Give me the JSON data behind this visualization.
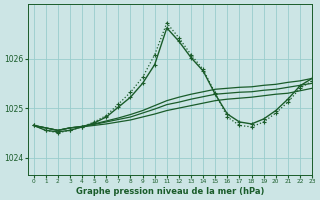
{
  "background_color": "#cce5e5",
  "grid_color": "#99cccc",
  "line_color": "#1a5c2a",
  "title": "Graphe pression niveau de la mer (hPa)",
  "xlim": [
    -0.5,
    23
  ],
  "ylim": [
    1023.65,
    1027.1
  ],
  "yticks": [
    1024,
    1025,
    1026
  ],
  "xticks": [
    0,
    1,
    2,
    3,
    4,
    5,
    6,
    7,
    8,
    9,
    10,
    11,
    12,
    13,
    14,
    15,
    16,
    17,
    18,
    19,
    20,
    21,
    22,
    23
  ],
  "series": [
    {
      "x": [
        0,
        1,
        2,
        3,
        4,
        5,
        6,
        7,
        8,
        9,
        10,
        11,
        12,
        13,
        14,
        15,
        16,
        17,
        18,
        19,
        20,
        21,
        22,
        23
      ],
      "y": [
        1024.65,
        1024.6,
        1024.55,
        1024.6,
        1024.62,
        1024.65,
        1024.68,
        1024.72,
        1024.76,
        1024.82,
        1024.88,
        1024.95,
        1025.0,
        1025.05,
        1025.1,
        1025.15,
        1025.18,
        1025.2,
        1025.22,
        1025.25,
        1025.28,
        1025.3,
        1025.35,
        1025.4
      ],
      "style": "-",
      "marker": null,
      "linewidth": 0.9,
      "markersize": 0
    },
    {
      "x": [
        0,
        1,
        2,
        3,
        4,
        5,
        6,
        7,
        8,
        9,
        10,
        11,
        12,
        13,
        14,
        15,
        16,
        17,
        18,
        19,
        20,
        21,
        22,
        23
      ],
      "y": [
        1024.65,
        1024.6,
        1024.55,
        1024.6,
        1024.63,
        1024.67,
        1024.72,
        1024.77,
        1024.82,
        1024.9,
        1024.98,
        1025.07,
        1025.12,
        1025.18,
        1025.23,
        1025.28,
        1025.3,
        1025.32,
        1025.33,
        1025.36,
        1025.38,
        1025.42,
        1025.46,
        1025.5
      ],
      "style": "-",
      "marker": null,
      "linewidth": 0.9,
      "markersize": 0
    },
    {
      "x": [
        0,
        1,
        2,
        3,
        4,
        5,
        6,
        7,
        8,
        9,
        10,
        11,
        12,
        13,
        14,
        15,
        16,
        17,
        18,
        19,
        20,
        21,
        22,
        23
      ],
      "y": [
        1024.65,
        1024.6,
        1024.55,
        1024.6,
        1024.63,
        1024.68,
        1024.74,
        1024.8,
        1024.87,
        1024.95,
        1025.05,
        1025.15,
        1025.22,
        1025.28,
        1025.33,
        1025.38,
        1025.4,
        1025.42,
        1025.43,
        1025.46,
        1025.48,
        1025.52,
        1025.55,
        1025.6
      ],
      "style": "-",
      "marker": null,
      "linewidth": 0.9,
      "markersize": 0
    },
    {
      "x": [
        0,
        1,
        2,
        3,
        4,
        5,
        6,
        7,
        8,
        9,
        10,
        11,
        12,
        13,
        14,
        15,
        16,
        17,
        18,
        19,
        20,
        21,
        22,
        23
      ],
      "y": [
        1024.65,
        1024.55,
        1024.52,
        1024.55,
        1024.62,
        1024.7,
        1024.82,
        1025.02,
        1025.22,
        1025.5,
        1025.88,
        1026.62,
        1026.35,
        1026.02,
        1025.75,
        1025.28,
        1024.88,
        1024.72,
        1024.68,
        1024.78,
        1024.95,
        1025.18,
        1025.45,
        1025.6
      ],
      "style": "-",
      "marker": "+",
      "linewidth": 1.0,
      "markersize": 3.5
    },
    {
      "x": [
        0,
        1,
        2,
        3,
        4,
        5,
        6,
        7,
        8,
        9,
        10,
        11,
        12,
        13,
        14,
        15,
        16,
        17,
        18,
        19,
        20,
        21,
        22,
        23
      ],
      "y": [
        1024.65,
        1024.55,
        1024.5,
        1024.55,
        1024.62,
        1024.72,
        1024.85,
        1025.08,
        1025.32,
        1025.62,
        1026.08,
        1026.72,
        1026.42,
        1026.08,
        1025.78,
        1025.3,
        1024.82,
        1024.65,
        1024.62,
        1024.72,
        1024.9,
        1025.12,
        1025.4,
        1025.55
      ],
      "style": ":",
      "marker": "+",
      "linewidth": 0.9,
      "markersize": 3.5
    }
  ]
}
